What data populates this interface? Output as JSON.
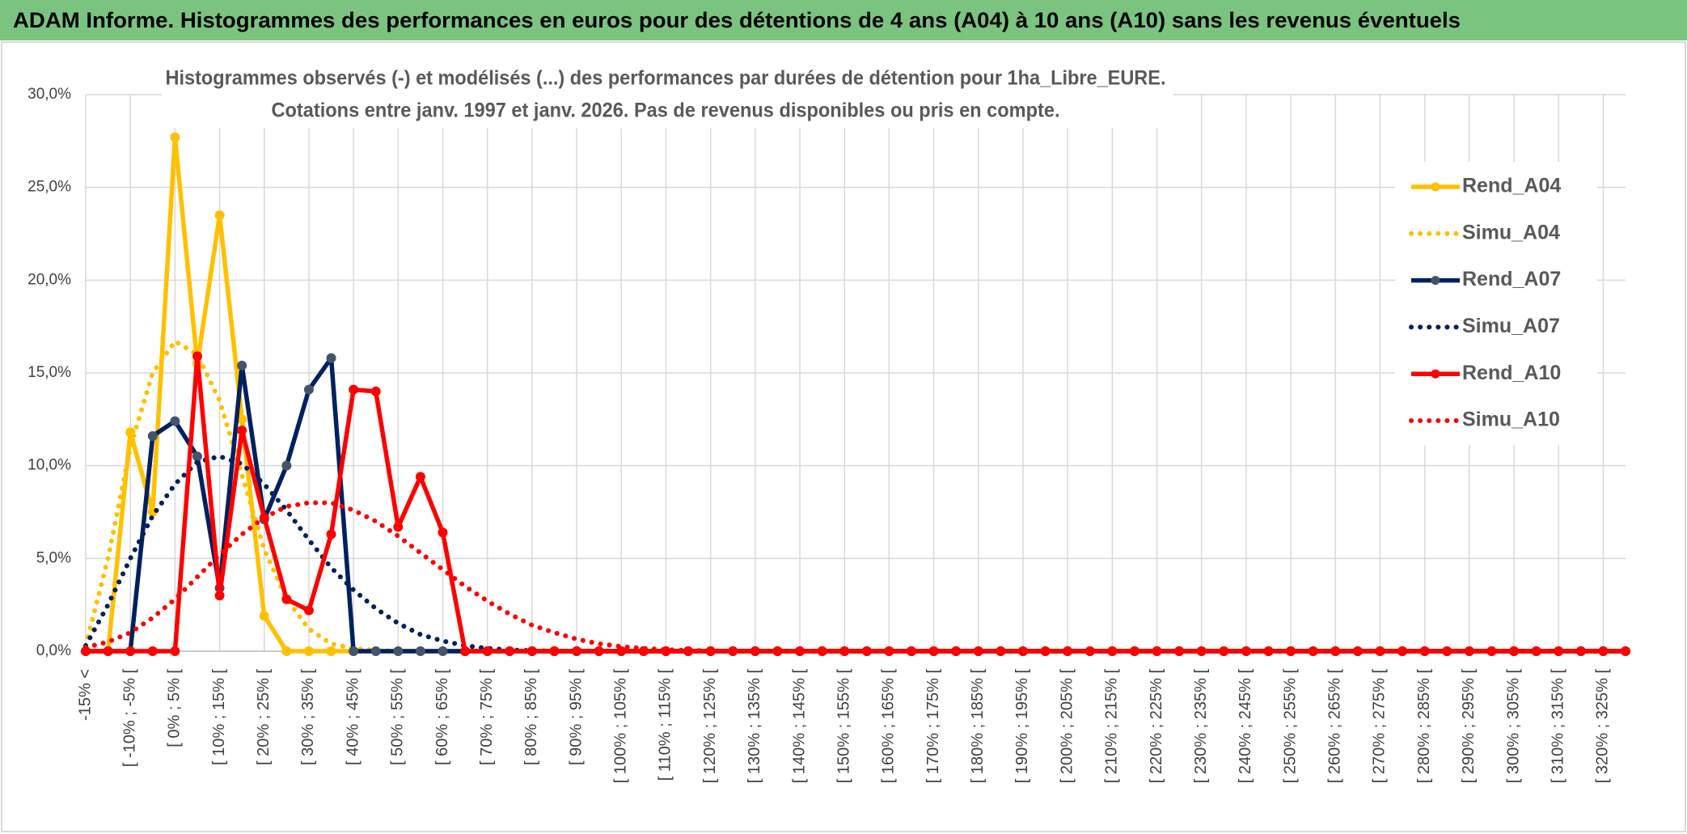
{
  "chart_data": {
    "type": "line",
    "title": "ADAM Informe. Histogrammes des performances en euros pour des détentions de 4 ans (A04) à 10 ans (A10) sans les revenus éventuels",
    "subtitle": [
      "Histogrammes observés (-) et modélisés (...) des performances par durées de détention pour 1ha_Libre_EURE.",
      "Cotations entre janv. 1997 et janv. 2026. Pas de revenus disponibles ou pris en compte."
    ],
    "categories": [
      "-15% <",
      null,
      "[ -10% ; -5% [",
      null,
      "[ 0% ; 5% [",
      null,
      "[ 10% ; 15% [",
      null,
      "[ 20% ; 25% [",
      null,
      "[ 30% ; 35% [",
      null,
      "[ 40% ; 45% [",
      null,
      "[ 50% ; 55% [",
      null,
      "[ 60% ; 65% [",
      null,
      "[ 70% ; 75% [",
      null,
      "[ 80% ; 85% [",
      null,
      "[ 90% ; 95% [",
      null,
      "[ 100% ; 105% [",
      null,
      "[ 110% ; 115% [",
      null,
      "[ 120% ; 125% [",
      null,
      "[ 130% ; 135% [",
      null,
      "[ 140% ; 145% [",
      null,
      "[ 150% ; 155% [",
      null,
      "[ 160% ; 165% [",
      null,
      "[ 170% ; 175% [",
      null,
      "[ 180% ; 185% [",
      null,
      "[ 190% ; 195% [",
      null,
      "[ 200% ; 205% [",
      null,
      "[ 210% ; 215% [",
      null,
      "[ 220% ; 225% [",
      null,
      "[ 230% ; 235% [",
      null,
      "[ 240% ; 245% [",
      null,
      "[ 250% ; 255% [",
      null,
      "[ 260% ; 265% [",
      null,
      "[ 270% ; 275% [",
      null,
      "[ 280% ; 285% [",
      null,
      "[ 290% ; 295% [",
      null,
      "[ 300% ; 305% [",
      null,
      "[ 310% ; 315% [",
      null,
      "[ 320% ; 325% [",
      null
    ],
    "series": [
      {
        "name": "Rend_A04",
        "color": "#ffc000",
        "style": "solid",
        "markers": true,
        "marker_color": "#ffc000",
        "values": [
          0,
          0,
          11.8,
          7.5,
          27.7,
          15.5,
          23.5,
          12.5,
          1.9,
          0,
          0,
          0,
          0,
          0,
          0,
          0,
          0,
          0,
          0,
          0,
          0,
          0,
          0,
          0,
          0,
          0,
          0,
          0,
          0,
          0,
          0,
          0,
          0,
          0,
          0,
          0,
          0,
          0,
          0,
          0,
          0,
          0,
          0,
          0,
          0,
          0,
          0,
          0,
          0,
          0,
          0,
          0,
          0,
          0,
          0,
          0,
          0,
          0,
          0,
          0,
          0,
          0,
          0,
          0,
          0,
          0,
          0,
          0,
          0,
          0
        ]
      },
      {
        "name": "Simu_A04",
        "color": "#ffc000",
        "style": "dotted",
        "markers": false,
        "values": [
          0.3,
          5,
          11,
          15,
          16.7,
          16,
          13.5,
          9.5,
          5.5,
          2.8,
          1.2,
          0.4,
          0.15,
          0.05,
          0,
          0,
          0,
          0,
          0,
          0,
          0,
          0,
          0,
          0,
          0,
          0,
          0,
          0,
          0,
          0,
          0,
          0,
          0,
          0,
          0,
          0,
          0,
          0,
          0,
          0,
          0,
          0,
          0,
          0,
          0,
          0,
          0,
          0,
          0,
          0,
          0,
          0,
          0,
          0,
          0,
          0,
          0,
          0,
          0,
          0,
          0,
          0,
          0,
          0,
          0,
          0,
          0,
          0,
          0,
          0
        ]
      },
      {
        "name": "Rend_A07",
        "color": "#002060",
        "style": "solid",
        "markers": true,
        "marker_color": "#44546a",
        "values": [
          0,
          0,
          0,
          11.6,
          12.4,
          10.5,
          3.4,
          15.4,
          7.1,
          10.0,
          14.1,
          15.8,
          0,
          0,
          0,
          0,
          0,
          0,
          0,
          0,
          0,
          0,
          0,
          0,
          0,
          0,
          0,
          0,
          0,
          0,
          0,
          0,
          0,
          0,
          0,
          0,
          0,
          0,
          0,
          0,
          0,
          0,
          0,
          0,
          0,
          0,
          0,
          0,
          0,
          0,
          0,
          0,
          0,
          0,
          0,
          0,
          0,
          0,
          0,
          0,
          0,
          0,
          0,
          0,
          0,
          0,
          0,
          0,
          0,
          0
        ]
      },
      {
        "name": "Simu_A07",
        "color": "#002060",
        "style": "dotted",
        "markers": false,
        "values": [
          0.3,
          2.5,
          5,
          7.3,
          9,
          10.2,
          10.5,
          10.1,
          9,
          7.6,
          6,
          4.5,
          3.3,
          2.3,
          1.5,
          0.9,
          0.55,
          0.3,
          0.15,
          0.07,
          0.03,
          0,
          0,
          0,
          0,
          0,
          0,
          0,
          0,
          0,
          0,
          0,
          0,
          0,
          0,
          0,
          0,
          0,
          0,
          0,
          0,
          0,
          0,
          0,
          0,
          0,
          0,
          0,
          0,
          0,
          0,
          0,
          0,
          0,
          0,
          0,
          0,
          0,
          0,
          0,
          0,
          0,
          0,
          0,
          0,
          0,
          0,
          0,
          0,
          0
        ]
      },
      {
        "name": "Rend_A10",
        "color": "#ff0000",
        "style": "solid",
        "markers": true,
        "marker_color": "#ff0000",
        "values": [
          0,
          0,
          0,
          0,
          0,
          15.9,
          3.0,
          11.9,
          7.2,
          2.8,
          2.2,
          6.3,
          14.1,
          14.0,
          6.7,
          9.4,
          6.4,
          0,
          0,
          0,
          0,
          0,
          0,
          0,
          0,
          0,
          0,
          0,
          0,
          0,
          0,
          0,
          0,
          0,
          0,
          0,
          0,
          0,
          0,
          0,
          0,
          0,
          0,
          0,
          0,
          0,
          0,
          0,
          0,
          0,
          0,
          0,
          0,
          0,
          0,
          0,
          0,
          0,
          0,
          0,
          0,
          0,
          0,
          0,
          0,
          0,
          0,
          0,
          0,
          0
        ]
      },
      {
        "name": "Simu_A10",
        "color": "#ff0000",
        "style": "dotted",
        "markers": false,
        "values": [
          0.2,
          0.5,
          1.0,
          1.8,
          2.8,
          4.0,
          5.2,
          6.3,
          7.2,
          7.8,
          8.0,
          8.0,
          7.6,
          7.0,
          6.2,
          5.3,
          4.4,
          3.5,
          2.7,
          2.0,
          1.4,
          1.0,
          0.65,
          0.4,
          0.25,
          0.15,
          0.08,
          0.04,
          0.02,
          0,
          0,
          0,
          0,
          0,
          0,
          0,
          0,
          0,
          0,
          0,
          0,
          0,
          0,
          0,
          0,
          0,
          0,
          0,
          0,
          0,
          0,
          0,
          0,
          0,
          0,
          0,
          0,
          0,
          0,
          0,
          0,
          0,
          0,
          0,
          0,
          0,
          0,
          0,
          0,
          0
        ]
      }
    ],
    "ylim": [
      0,
      30
    ],
    "yticks": [
      {
        "value": 0,
        "label": "0,0%"
      },
      {
        "value": 5,
        "label": "5,0%"
      },
      {
        "value": 10,
        "label": "10,0%"
      },
      {
        "value": 15,
        "label": "15,0%"
      },
      {
        "value": 20,
        "label": "20,0%"
      },
      {
        "value": 25,
        "label": "25,0%"
      },
      {
        "value": 30,
        "label": "30,0%"
      }
    ],
    "grid": true,
    "legend": "right"
  }
}
